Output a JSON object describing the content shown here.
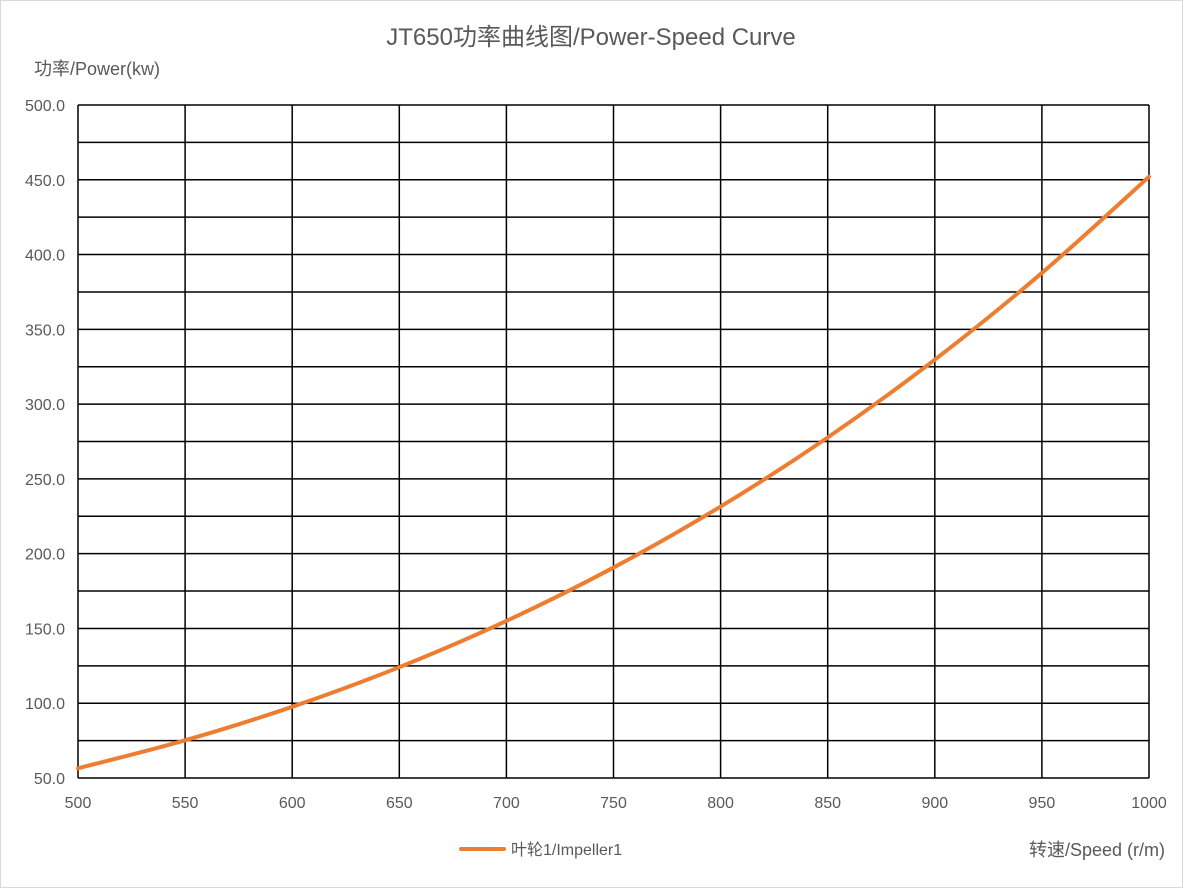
{
  "chart_data": {
    "type": "line",
    "title": "JT650功率曲线图/Power-Speed Curve",
    "ylabel": "功率/Power(kw)",
    "xlabel": "转速/Speed (r/m)",
    "xlim": [
      500,
      1000
    ],
    "ylim": [
      50,
      500
    ],
    "x_ticks": [
      500,
      550,
      600,
      650,
      700,
      750,
      800,
      850,
      900,
      950,
      1000
    ],
    "y_ticks": [
      "50.0",
      "100.0",
      "150.0",
      "200.0",
      "250.0",
      "300.0",
      "350.0",
      "400.0",
      "450.0",
      "500.0"
    ],
    "y_minor_step": 25,
    "grid": true,
    "legend_position": "bottom",
    "series": [
      {
        "name": "叶轮1/Impeller1",
        "color": "#ED7D31",
        "x": [
          500,
          550,
          600,
          650,
          700,
          750,
          800,
          850,
          900,
          950,
          1000
        ],
        "y": [
          56.5,
          75.2,
          97.6,
          124.1,
          155.0,
          190.7,
          231.5,
          277.7,
          329.7,
          387.7,
          452.0
        ]
      }
    ]
  }
}
